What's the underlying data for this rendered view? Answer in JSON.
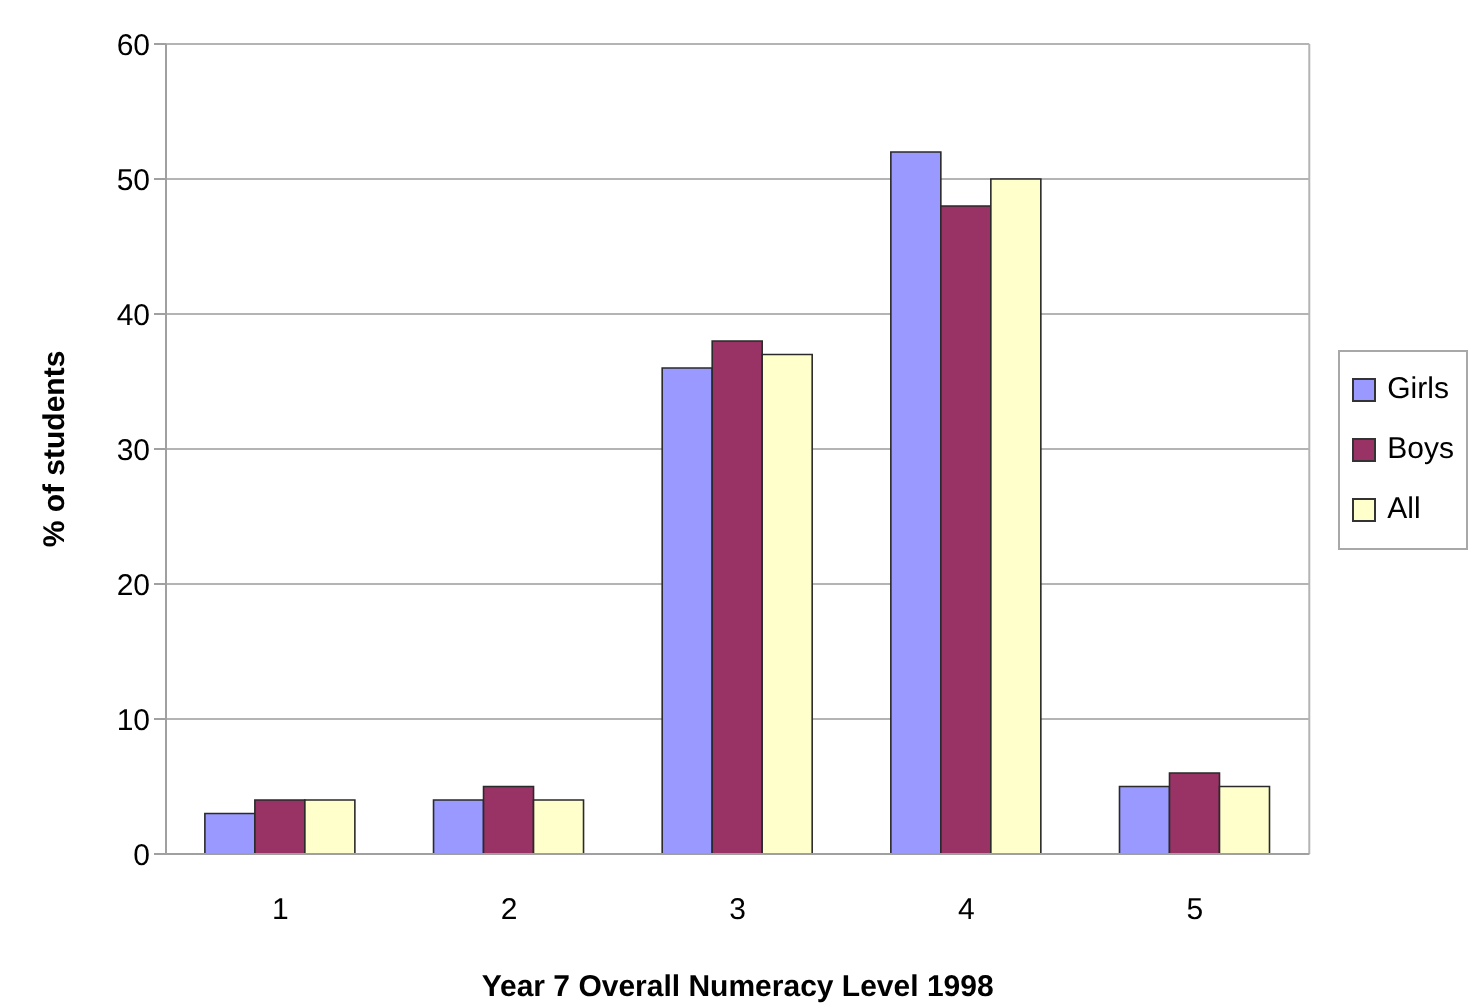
{
  "chart_data": {
    "type": "bar",
    "xlabel": "Year 7 Overall Numeracy Level 1998",
    "ylabel": "% of students",
    "categories": [
      "1",
      "2",
      "3",
      "4",
      "5"
    ],
    "series": [
      {
        "name": "Girls",
        "color": "#9999ff",
        "values": [
          3,
          4,
          36,
          52,
          5
        ]
      },
      {
        "name": "Boys",
        "color": "#993366",
        "values": [
          4,
          5,
          38,
          48,
          6
        ]
      },
      {
        "name": "All",
        "color": "#ffffcc",
        "values": [
          4,
          4,
          37,
          50,
          5
        ]
      }
    ],
    "ylim": [
      0,
      60
    ],
    "yticks": [
      0,
      10,
      20,
      30,
      40,
      50,
      60
    ],
    "grid": "y",
    "legend": "right"
  }
}
